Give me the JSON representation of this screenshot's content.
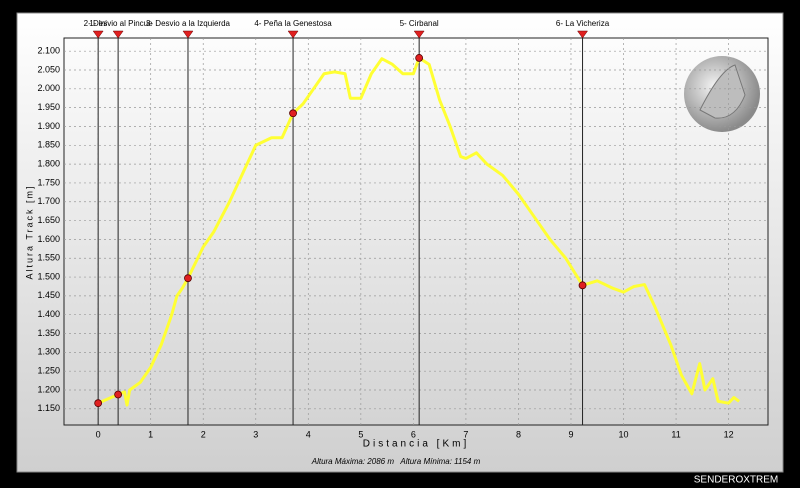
{
  "chart_data": {
    "type": "line",
    "x_label": "Distancia [Km]",
    "y_label": "Altura Track [m]",
    "annotation": "Altura Máxima: 2086 m   Altura Mínima: 1154 m",
    "credit": "SENDEROXTREM",
    "xlim": [
      -0.65,
      12.75
    ],
    "ylim": [
      1107,
      2135
    ],
    "xticks": [
      0,
      1,
      2,
      3,
      4,
      5,
      6,
      7,
      8,
      9,
      10,
      11,
      12
    ],
    "yticks": [
      {
        "value": 1150,
        "label": "1.150"
      },
      {
        "value": 1200,
        "label": "1.200"
      },
      {
        "value": 1250,
        "label": "1.250"
      },
      {
        "value": 1300,
        "label": "1.300"
      },
      {
        "value": 1350,
        "label": "1.350"
      },
      {
        "value": 1400,
        "label": "1.400"
      },
      {
        "value": 1450,
        "label": "1.450"
      },
      {
        "value": 1500,
        "label": "1.500"
      },
      {
        "value": 1550,
        "label": "1.550"
      },
      {
        "value": 1600,
        "label": "1.600"
      },
      {
        "value": 1650,
        "label": "1.650"
      },
      {
        "value": 1700,
        "label": "1.700"
      },
      {
        "value": 1750,
        "label": "1.750"
      },
      {
        "value": 1800,
        "label": "1.800"
      },
      {
        "value": 1850,
        "label": "1.850"
      },
      {
        "value": 1900,
        "label": "1.900"
      },
      {
        "value": 1950,
        "label": "1.950"
      },
      {
        "value": 2000,
        "label": "2.000"
      },
      {
        "value": 2050,
        "label": "2.050"
      },
      {
        "value": 2100,
        "label": "2.100"
      }
    ],
    "grid": true,
    "series": [
      {
        "color": "#ffff33",
        "x": [
          0,
          0.38,
          0.5,
          0.55,
          0.6,
          0.8,
          1.0,
          1.2,
          1.4,
          1.5,
          1.6,
          1.71,
          2.0,
          2.2,
          2.5,
          2.8,
          3.0,
          3.3,
          3.5,
          3.71,
          3.9,
          4.1,
          4.3,
          4.5,
          4.7,
          4.8,
          5.0,
          5.2,
          5.4,
          5.6,
          5.8,
          6.0,
          6.11,
          6.3,
          6.5,
          6.7,
          6.9,
          7.0,
          7.2,
          7.4,
          7.7,
          8.0,
          8.3,
          8.6,
          8.9,
          9.22,
          9.5,
          9.8,
          10.0,
          10.2,
          10.4,
          10.6,
          10.9,
          11.1,
          11.3,
          11.45,
          11.55,
          11.7,
          11.8,
          12.0,
          12.1,
          12.2
        ],
        "values": [
          1165,
          1188,
          1195,
          1160,
          1200,
          1220,
          1260,
          1320,
          1400,
          1450,
          1470,
          1497,
          1580,
          1620,
          1700,
          1790,
          1850,
          1870,
          1870,
          1935,
          1960,
          2000,
          2040,
          2045,
          2040,
          1975,
          1975,
          2040,
          2080,
          2065,
          2040,
          2040,
          2082,
          2065,
          1970,
          1900,
          1820,
          1815,
          1830,
          1800,
          1770,
          1720,
          1660,
          1600,
          1550,
          1478,
          1490,
          1470,
          1460,
          1475,
          1480,
          1420,
          1320,
          1240,
          1190,
          1270,
          1200,
          1230,
          1170,
          1165,
          1180,
          1170
        ]
      }
    ],
    "waypoints": [
      {
        "label": "1- Ini",
        "km": 0,
        "elevation": 1165
      },
      {
        "label": "2- Desvio al Pincue",
        "km": 0.38,
        "elevation": 1188
      },
      {
        "label": "3- Desvio a la Izquierda",
        "km": 1.71,
        "elevation": 1497
      },
      {
        "label": "4- Peña la Genestosa",
        "km": 3.71,
        "elevation": 1935
      },
      {
        "label": "5- Cirbanal",
        "km": 6.11,
        "elevation": 2082
      },
      {
        "label": "6- La Vicheriza",
        "km": 9.22,
        "elevation": 1478
      }
    ],
    "marker_color": "#e02020"
  }
}
